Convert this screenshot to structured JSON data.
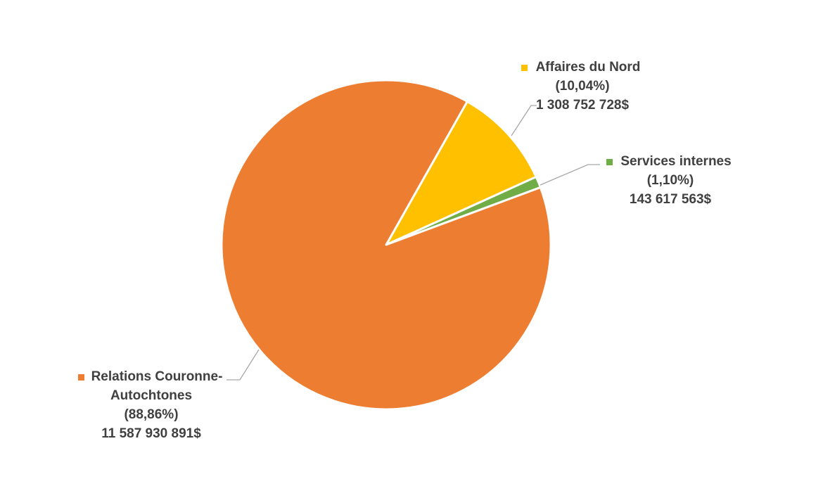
{
  "chart_data": {
    "type": "pie",
    "title": "",
    "slices": [
      {
        "name_lines": [
          "Relations Couronne-",
          "Autochtones"
        ],
        "percent_label": "(88,86%)",
        "amount_label": "11 587 930 891$",
        "value": 11587930891,
        "color": "#ED7D31"
      },
      {
        "name_lines": [
          "Affaires du Nord"
        ],
        "percent_label": "(10,04%)",
        "amount_label": "1 308 752 728$",
        "value": 1308752728,
        "color": "#FFC000"
      },
      {
        "name_lines": [
          "Services internes"
        ],
        "percent_label": "(1,10%)",
        "amount_label": "143 617 563$",
        "value": 143617563,
        "color": "#70AD47"
      }
    ],
    "legend": "none",
    "data_labels": "outside-with-leader-lines"
  }
}
